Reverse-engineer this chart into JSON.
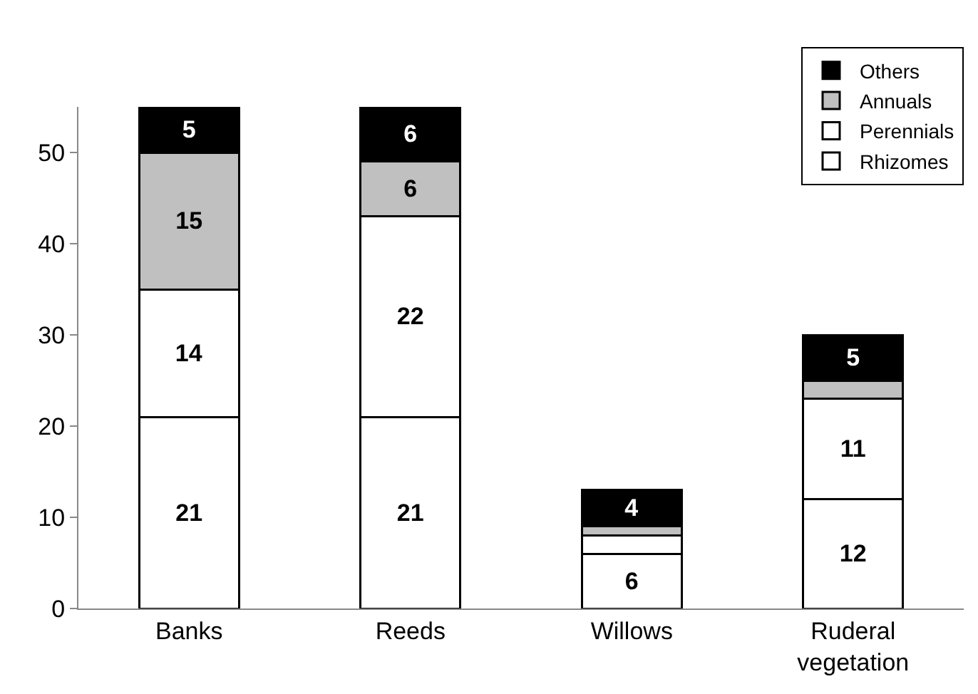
{
  "chart_data": {
    "type": "bar",
    "stacked": true,
    "categories": [
      "Banks",
      "Reeds",
      "Willows",
      "Ruderal vegetation"
    ],
    "series": [
      {
        "name": "Rhizomes",
        "color": "#ffffff",
        "values": [
          21,
          21,
          6,
          12
        ],
        "value_labels": [
          "21",
          "21",
          "6",
          "12"
        ]
      },
      {
        "name": "Perennials",
        "color": "#ffffff",
        "values": [
          14,
          22,
          2,
          11
        ],
        "value_labels": [
          "14",
          "22",
          null,
          "11"
        ]
      },
      {
        "name": "Annuals",
        "color": "#c0c0c0",
        "values": [
          15,
          6,
          1,
          2
        ],
        "value_labels": [
          "15",
          "6",
          null,
          null
        ]
      },
      {
        "name": "Others",
        "color": "#000000",
        "values": [
          5,
          6,
          4,
          5
        ],
        "value_labels": [
          "5",
          "6",
          "4",
          "5"
        ]
      }
    ],
    "ylim": [
      0,
      55
    ],
    "yticks": [
      0,
      10,
      20,
      30,
      40,
      50
    ],
    "grid": false,
    "legend": "top right"
  }
}
